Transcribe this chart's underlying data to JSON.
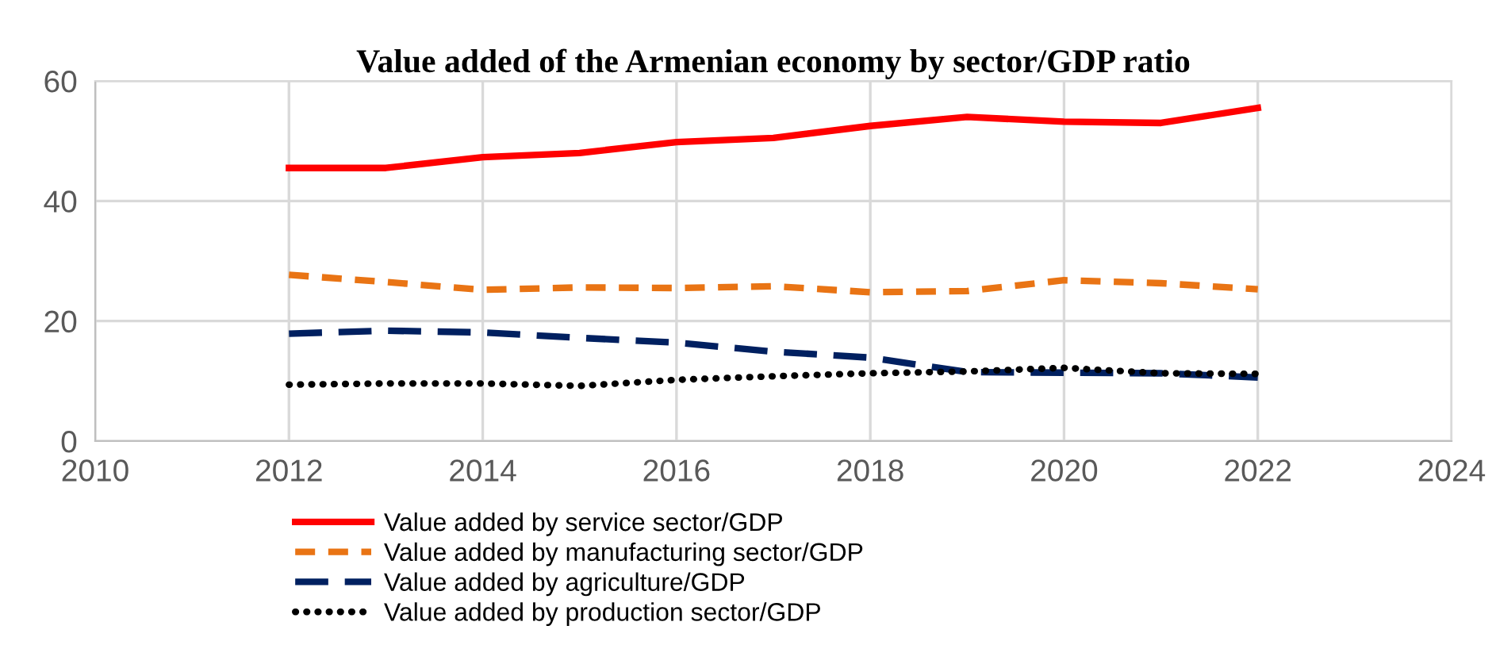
{
  "chart_data": {
    "type": "line",
    "title": "Value added of the Armenian economy by sector/GDP ratio",
    "x": [
      2012,
      2013,
      2014,
      2015,
      2016,
      2017,
      2018,
      2019,
      2020,
      2021,
      2022
    ],
    "series": [
      {
        "name": "Value added by service sector/GDP",
        "color": "#ff0000",
        "line_style": "solid",
        "values": [
          45.5,
          45.5,
          47.3,
          48,
          49.8,
          50.5,
          52.5,
          54,
          53.2,
          53,
          55.5
        ]
      },
      {
        "name": "Value added by manufacturing sector/GDP",
        "color": "#e97414",
        "line_style": "dashed",
        "values": [
          27.7,
          26.5,
          25.2,
          25.6,
          25.5,
          25.8,
          24.8,
          25,
          26.8,
          26.3,
          25.3
        ]
      },
      {
        "name": "Value added by agriculture/GDP",
        "color": "#002060",
        "line_style": "longdash",
        "values": [
          17.9,
          18.4,
          18.1,
          17.2,
          16.4,
          14.9,
          13.9,
          11.5,
          11.4,
          11.3,
          10.6
        ]
      },
      {
        "name": "Value added by production sector/GDP",
        "color": "#000000",
        "line_style": "dotted",
        "values": [
          9.4,
          9.6,
          9.6,
          9.2,
          10.2,
          10.8,
          11.3,
          11.6,
          12.2,
          11.3,
          11.2
        ]
      }
    ],
    "xlim": [
      2010,
      2024
    ],
    "xticks": [
      2010,
      2012,
      2014,
      2016,
      2018,
      2020,
      2022,
      2024
    ],
    "ylim": [
      0,
      60
    ],
    "yticks": [
      0,
      20,
      40,
      60
    ],
    "grid": true,
    "legend": "bottom",
    "marker": "none"
  }
}
